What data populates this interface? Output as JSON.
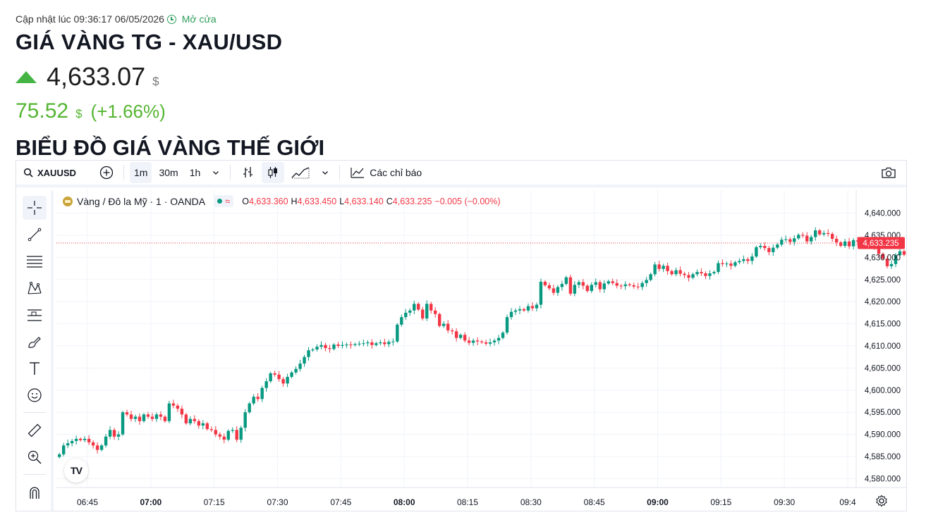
{
  "header": {
    "update_label": "Cập nhật lúc 09:36:17 06/05/2026",
    "status": "Mở cửa",
    "title": "GIÁ VÀNG TG - XAU/USD",
    "price": "4,633.07",
    "price_unit": "$",
    "change": "75.52",
    "change_unit": "$",
    "change_pct": "(+1.66%)",
    "section_title": "BIỂU ĐỒ GIÁ VÀNG THẾ GIỚI",
    "trend_icon": "up-arrow-icon",
    "trend_color": "#44b544"
  },
  "toolbar": {
    "symbol": "XAUUSD",
    "intervals": [
      "1m",
      "30m",
      "1h"
    ],
    "active_interval": "1m",
    "indicators_label": "Các chỉ báo"
  },
  "legend": {
    "name": "Vàng / Đô la Mỹ · 1 · OANDA",
    "wave_symbol": "≈",
    "o_label": "O",
    "o": "4,633.360",
    "h_label": "H",
    "h": "4,633.450",
    "l_label": "L",
    "l": "4,633.140",
    "c_label": "C",
    "c": "4,633.235",
    "change": "−0.005 (−0.00%)"
  },
  "chart_data": {
    "type": "candlestick",
    "symbol": "XAUUSD",
    "interval": "1m",
    "ylim": [
      4578,
      4642
    ],
    "y_ticks": [
      "4,580.000",
      "4,585.000",
      "4,590.000",
      "4,595.000",
      "4,600.000",
      "4,605.000",
      "4,610.000",
      "4,615.000",
      "4,620.000",
      "4,625.000",
      "4,630.000",
      "4,635.000",
      "4,640.000"
    ],
    "y_tick_values": [
      4580,
      4585,
      4590,
      4595,
      4600,
      4605,
      4610,
      4615,
      4620,
      4625,
      4630,
      4635,
      4640
    ],
    "x_ticks": [
      {
        "label": "06:45",
        "bold": false,
        "t": 45
      },
      {
        "label": "07:00",
        "bold": true,
        "t": 60
      },
      {
        "label": "07:15",
        "bold": false,
        "t": 75
      },
      {
        "label": "07:30",
        "bold": false,
        "t": 90
      },
      {
        "label": "07:45",
        "bold": false,
        "t": 105
      },
      {
        "label": "08:00",
        "bold": true,
        "t": 120
      },
      {
        "label": "08:15",
        "bold": false,
        "t": 135
      },
      {
        "label": "08:30",
        "bold": false,
        "t": 150
      },
      {
        "label": "08:45",
        "bold": false,
        "t": 165
      },
      {
        "label": "09:00",
        "bold": true,
        "t": 180
      },
      {
        "label": "09:15",
        "bold": false,
        "t": 195
      },
      {
        "label": "09:30",
        "bold": false,
        "t": 210
      },
      {
        "label": "09:4",
        "bold": false,
        "t": 225
      }
    ],
    "last_price": 4633.235,
    "last_price_label": "4,633.235",
    "up_color": "#089981",
    "down_color": "#f23645",
    "closes": [
      4585.5,
      4587.5,
      4588,
      4588.5,
      4589,
      4588.7,
      4589,
      4588.2,
      4587.5,
      4586.5,
      4587.5,
      4589.5,
      4591,
      4589.5,
      4590,
      4595,
      4594.5,
      4593.5,
      4594,
      4593,
      4594.5,
      4594,
      4593.5,
      4594.5,
      4594,
      4593,
      4597,
      4596.5,
      4595.8,
      4594.5,
      4592.5,
      4593.5,
      4593,
      4592,
      4592.5,
      4591.2,
      4591,
      4590,
      4589.5,
      4588.8,
      4590.8,
      4591,
      4588.8,
      4591.5,
      4595,
      4597,
      4598.5,
      4598,
      4600.5,
      4602,
      4603.8,
      4603.5,
      4602.5,
      4601.5,
      4603,
      4604,
      4604.8,
      4606,
      4607.5,
      4609,
      4609.2,
      4609.8,
      4610.2,
      4609.5,
      4609.3,
      4610.3,
      4610,
      4610.2,
      4610.3,
      4610.2,
      4610.4,
      4610.5,
      4610.6,
      4610.8,
      4610.2,
      4610.6,
      4610.8,
      4610.4,
      4610.9,
      4611,
      4614.8,
      4616.5,
      4617.5,
      4618,
      4619.5,
      4618.2,
      4616.2,
      4619.5,
      4618,
      4617.2,
      4614.5,
      4615,
      4613.5,
      4613.3,
      4611.8,
      4612.5,
      4611.2,
      4610.7,
      4611.2,
      4611,
      4610.8,
      4610.5,
      4610.8,
      4611.2,
      4611.8,
      4613,
      4616.5,
      4617.7,
      4618,
      4618.3,
      4618,
      4619,
      4618.5,
      4619.3,
      4624.5,
      4623.7,
      4623,
      4622,
      4623.3,
      4624,
      4625.5,
      4621.8,
      4623.8,
      4624.4,
      4623.6,
      4622.4,
      4623.8,
      4624.4,
      4622.8,
      4624.1,
      4624.6,
      4624.2,
      4623.6,
      4623.5,
      4623.9,
      4623.7,
      4623.4,
      4623.3,
      4624.2,
      4624.9,
      4626.2,
      4628.4,
      4627.4,
      4628.1,
      4626.9,
      4626.2,
      4627.1,
      4626.3,
      4626,
      4625.4,
      4626.2,
      4626.7,
      4626.4,
      4625.8,
      4626.4,
      4626.7,
      4628.7,
      4628.5,
      4628.6,
      4628.1,
      4628.9,
      4629.2,
      4629.6,
      4629.2,
      4630.2,
      4632.3,
      4632.6,
      4632.1,
      4631.2,
      4632.2,
      4632.9,
      4634,
      4634.1,
      4633.5,
      4634.3,
      4635.1,
      4634.9,
      4633.6,
      4634.6,
      4636.1,
      4635.2,
      4635.5,
      4635.3,
      4634.2,
      4633.4,
      4632.6,
      4633.6,
      4632.5,
      4633.9,
      4633.5,
      4632.9,
      4633.7,
      4633.1,
      4632.4,
      4630.8,
      4629.7,
      4628,
      4628.5,
      4630.5,
      4631.4,
      4630.6,
      4632.2,
      4633.4,
      4633.2,
      4633.235
    ]
  }
}
